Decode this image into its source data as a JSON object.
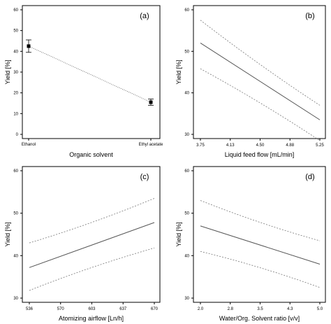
{
  "chart_data": [
    {
      "panel": "(a)",
      "type": "scatter",
      "categories": [
        "Ethanol",
        "Ethyl acetate"
      ],
      "values": [
        42.5,
        15.5
      ],
      "errors": [
        [
          39.5,
          45.5
        ],
        [
          14.0,
          17.0
        ]
      ],
      "xlabel": "Organic solvent",
      "ylabel": "Yield [%]",
      "ylim": [
        0,
        60
      ],
      "yticks": [
        "0",
        "10",
        "20",
        "30",
        "40",
        "50",
        "60"
      ]
    },
    {
      "panel": "(b)",
      "type": "line",
      "xlabel": "Liquid feed flow [mL/min]",
      "ylabel": "Yield [%]",
      "xlim": [
        3.75,
        5.25
      ],
      "ylim": [
        30,
        60
      ],
      "xticks": [
        "3.75",
        "4.13",
        "4.50",
        "4.88",
        "5.25"
      ],
      "yticks": [
        "30",
        "40",
        "50",
        "60"
      ],
      "x": [
        3.75,
        5.25
      ],
      "series": [
        {
          "role": "fit",
          "values": [
            52,
            33.5
          ]
        },
        {
          "role": "upper",
          "values": [
            57.5,
            37
          ]
        },
        {
          "role": "lower",
          "values": [
            45.8,
            28.5
          ]
        }
      ]
    },
    {
      "panel": "(c)",
      "type": "line",
      "xlabel": "Atomizing airflow [Ln/h]",
      "ylabel": "Yield [%]",
      "xlim": [
        536,
        670
      ],
      "ylim": [
        30,
        60
      ],
      "xticks": [
        "536",
        "570",
        "603",
        "637",
        "670"
      ],
      "yticks": [
        "30",
        "40",
        "50",
        "60"
      ],
      "x": [
        536,
        670
      ],
      "series": [
        {
          "role": "fit",
          "values": [
            37.2,
            47.8
          ]
        },
        {
          "role": "upper",
          "values": [
            43,
            53.5
          ]
        },
        {
          "role": "lower",
          "values": [
            31.8,
            41.8
          ]
        }
      ]
    },
    {
      "panel": "(d)",
      "type": "line",
      "xlabel": "Water/Org. Solvent ratio [v/v]",
      "ylabel": "Yield [%]",
      "xlim": [
        2.0,
        5.0
      ],
      "ylim": [
        30,
        60
      ],
      "xticks": [
        "2.0",
        "2.8",
        "3.5",
        "4.3",
        "5.0"
      ],
      "yticks": [
        "30",
        "40",
        "50",
        "60"
      ],
      "x": [
        2.0,
        5.0
      ],
      "series": [
        {
          "role": "fit",
          "values": [
            47,
            38
          ]
        },
        {
          "role": "upper",
          "values": [
            53,
            43.5
          ]
        },
        {
          "role": "lower",
          "values": [
            41,
            32.5
          ]
        }
      ]
    }
  ]
}
